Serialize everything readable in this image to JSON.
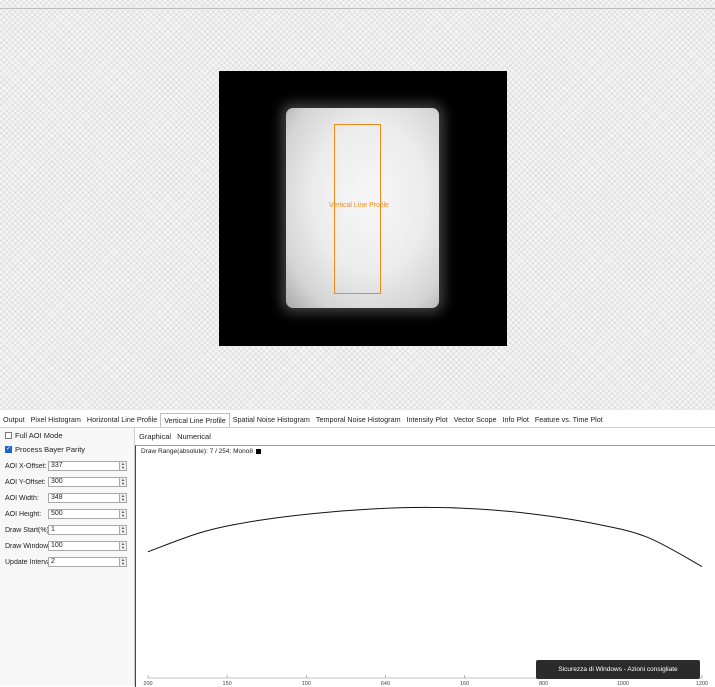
{
  "viewer": {
    "overlay_label": "Vertical Line Profile"
  },
  "tabs": [
    "Output",
    "Pixel Histogram",
    "Horizontal Line Profile",
    "Vertical Line Profile",
    "Spatial Noise Histogram",
    "Temporal Noise Histogram",
    "Intensity Plot",
    "Vector Scope",
    "Info Plot",
    "Feature vs. Time Plot"
  ],
  "active_tab": "Vertical Line Profile",
  "controls": {
    "full_aoi_mode": {
      "label": "Full AOI Mode",
      "checked": false
    },
    "process_bayer_parity": {
      "label": "Process Bayer Parity",
      "checked": true
    },
    "params": [
      {
        "label": "AOI X-Offset:",
        "value": "337"
      },
      {
        "label": "AOI Y-Offset:",
        "value": "300"
      },
      {
        "label": "AOI Width:",
        "value": "348"
      },
      {
        "label": "AOI Height:",
        "value": "500"
      },
      {
        "label": "Draw Start(%):",
        "value": "1"
      },
      {
        "label": "Draw Window(%):",
        "value": "100"
      },
      {
        "label": "Update Interval:",
        "value": "2"
      }
    ]
  },
  "graph": {
    "subtabs": [
      "Graphical",
      "Numerical"
    ],
    "active_subtab": "Graphical",
    "draw_range": "Draw Range(absolute): 7 / 254; Mono8"
  },
  "chart_data": {
    "type": "line",
    "series": [
      {
        "x": [
          0,
          50,
          100,
          150,
          200,
          250,
          300,
          350,
          400,
          450,
          500
        ],
        "values": [
          145,
          168,
          181,
          189,
          194,
          196,
          194,
          188,
          178,
          162,
          128
        ]
      }
    ],
    "xticks": [
      "200",
      "150",
      "100",
      "640",
      "160",
      "800",
      "1000",
      "1200"
    ],
    "ylim": [
      0,
      255
    ]
  },
  "toast": {
    "text": "Sicurezza di Windows - Azioni consigliate"
  },
  "colors": {
    "aoi_orange": "#f08a1f",
    "checkbox_blue": "#1d63c9"
  }
}
